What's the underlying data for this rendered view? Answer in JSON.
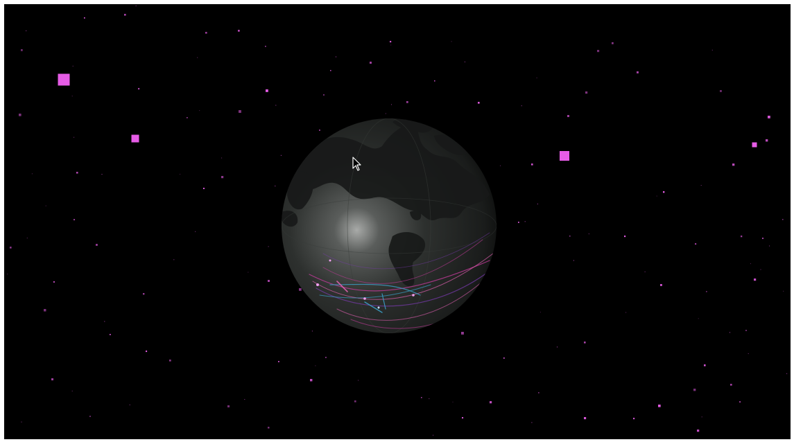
{
  "scene": {
    "background_color": "#000000",
    "page_frame_color": "#ffffff",
    "globe_color": "#2a2d2c",
    "continent_color": "#1a1c1b",
    "star_color": "#e65ce6",
    "arc_colors": [
      "#c23a9a",
      "#e05fb0",
      "#3aa0c8",
      "#7a3ab0"
    ],
    "cursor_icon": "arrow-cursor-icon"
  }
}
